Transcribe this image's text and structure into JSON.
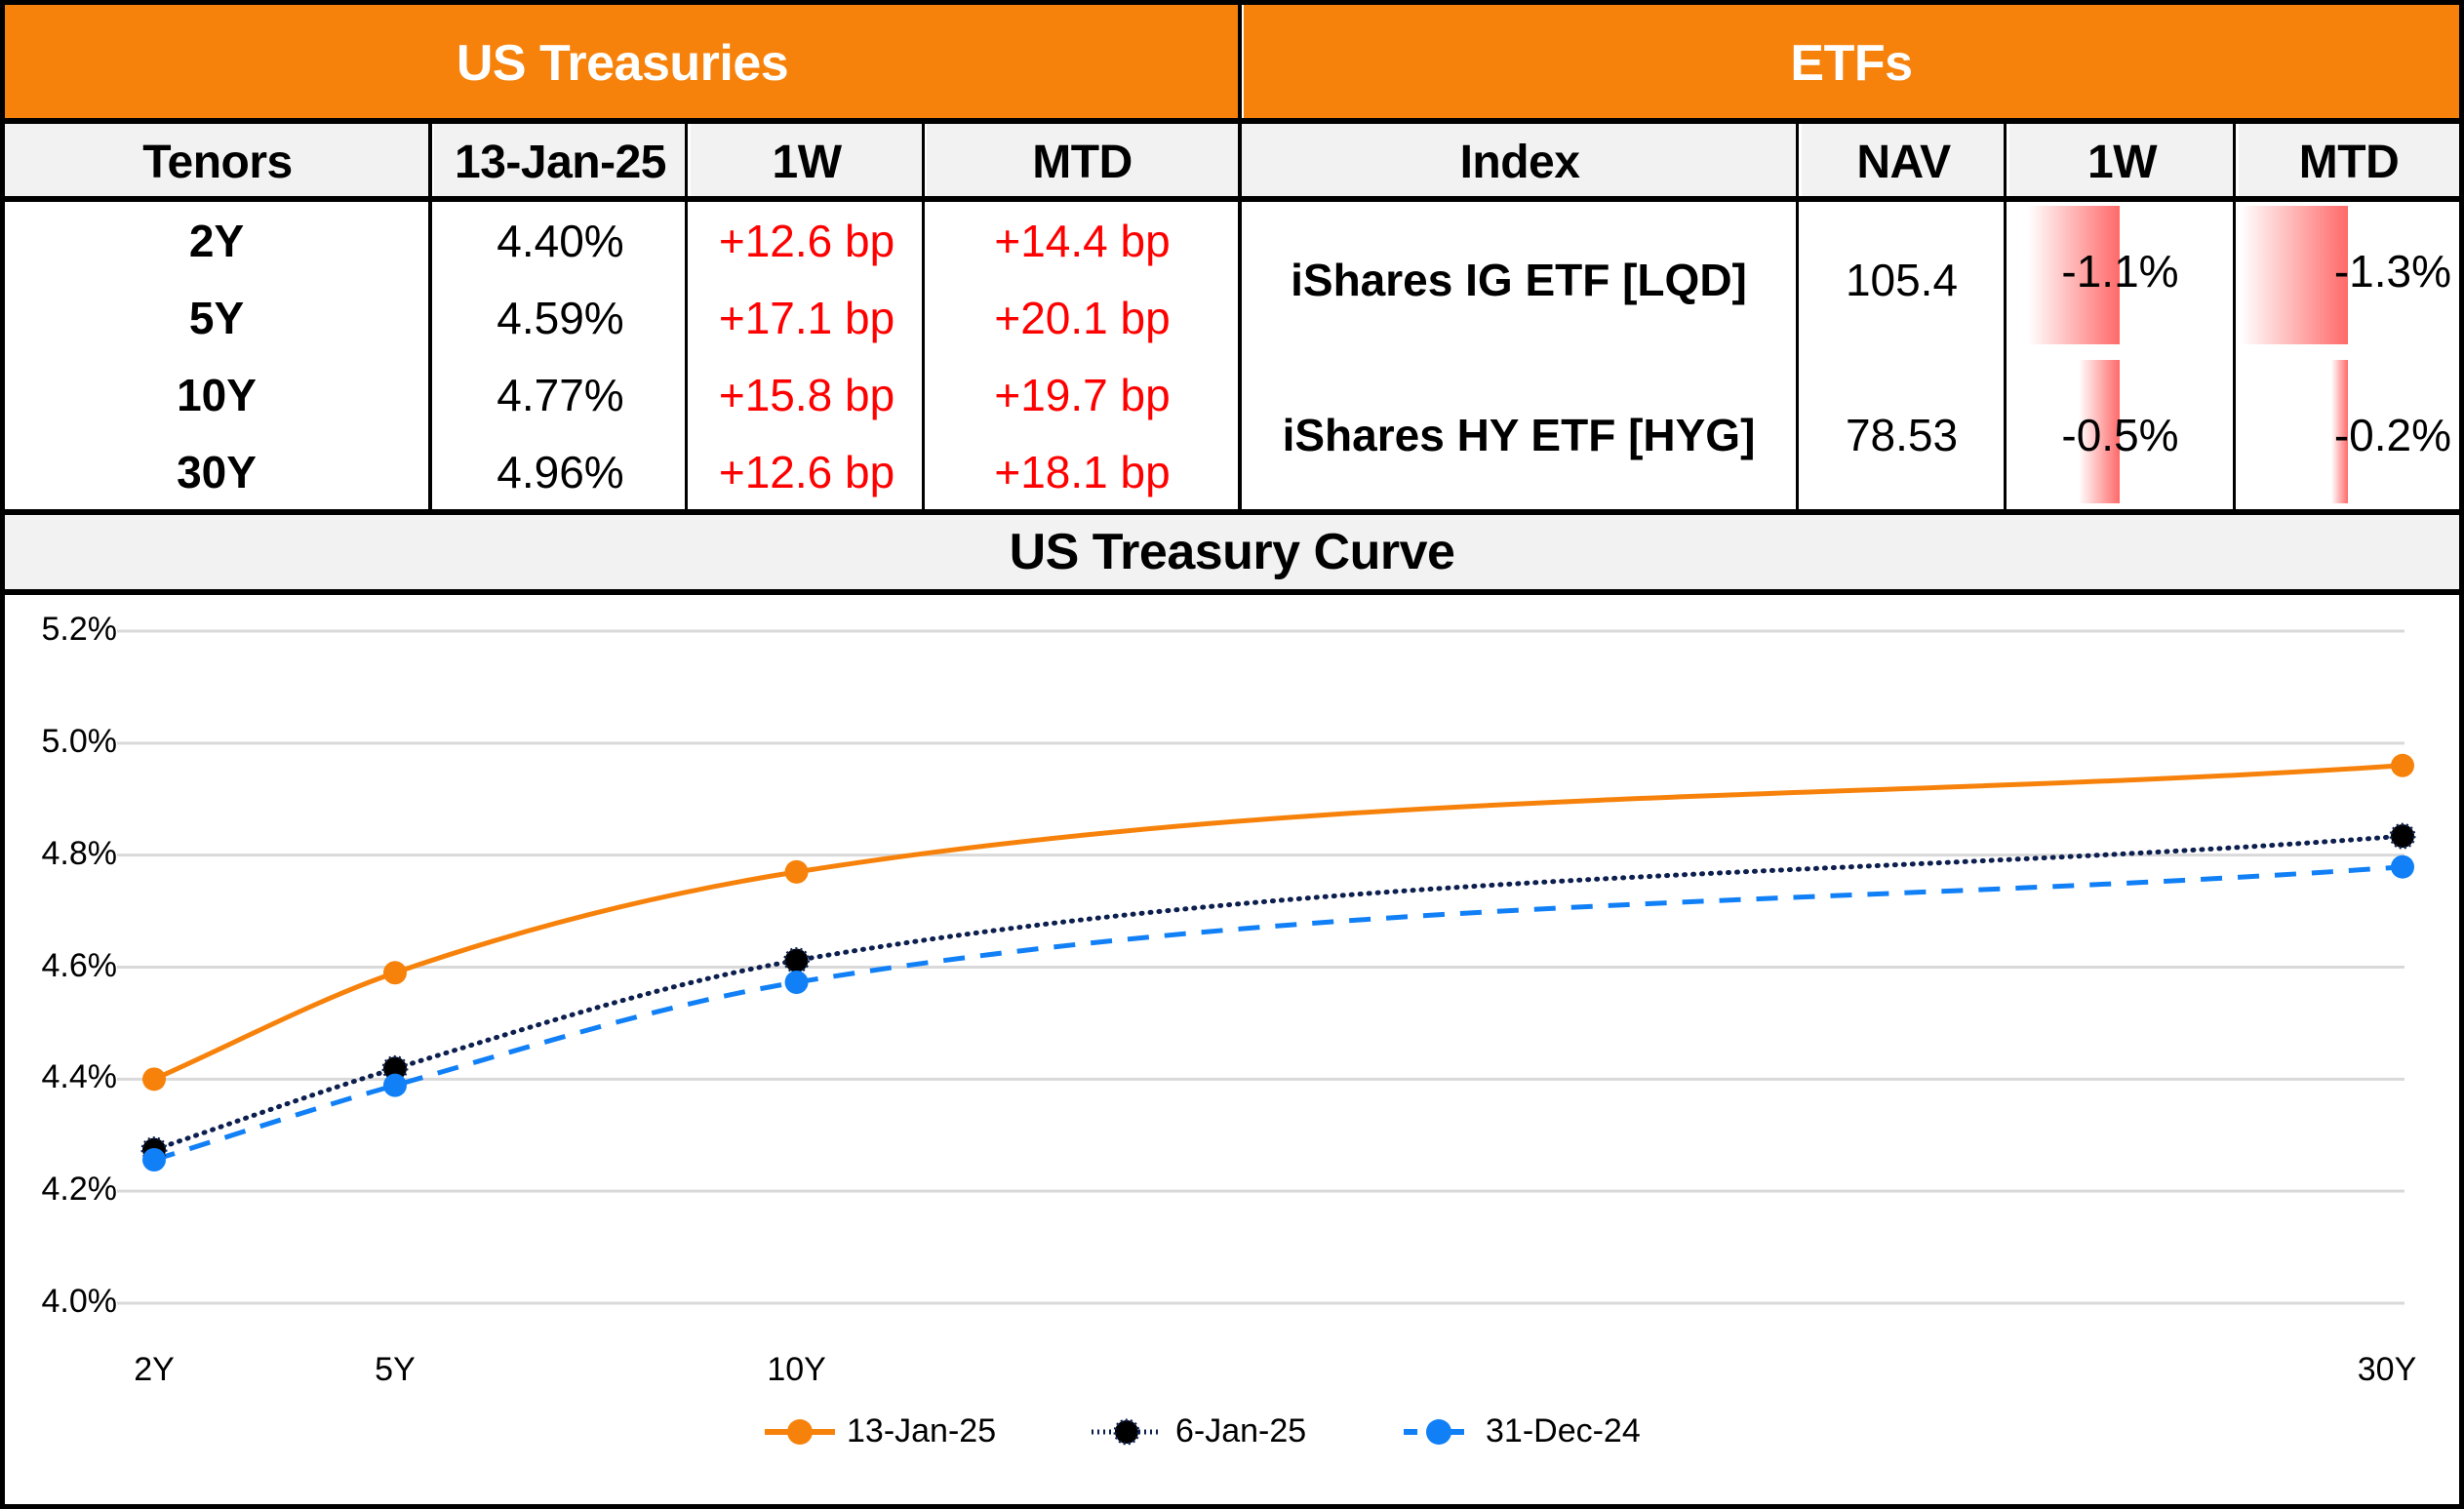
{
  "treasuries": {
    "title": "US Treasuries",
    "columns": [
      "Tenors",
      "13-Jan-25",
      "1W",
      "MTD"
    ],
    "rows": [
      {
        "tenor": "2Y",
        "yield": "4.40%",
        "w1": "+12.6 bp",
        "mtd": "+14.4 bp"
      },
      {
        "tenor": "5Y",
        "yield": "4.59%",
        "w1": "+17.1 bp",
        "mtd": "+20.1 bp"
      },
      {
        "tenor": "10Y",
        "yield": "4.77%",
        "w1": "+15.8 bp",
        "mtd": "+19.7 bp"
      },
      {
        "tenor": "30Y",
        "yield": "4.96%",
        "w1": "+12.6 bp",
        "mtd": "+18.1 bp"
      }
    ]
  },
  "etfs": {
    "title": "ETFs",
    "columns": [
      "Index",
      "NAV",
      "1W",
      "MTD"
    ],
    "rows": [
      {
        "index": "iShares IG ETF [LQD]",
        "nav": "105.4",
        "w1": "-1.1%",
        "mtd": "-1.3%",
        "w1_value": -1.1,
        "mtd_value": -1.3
      },
      {
        "index": "iShares HY ETF [HYG]",
        "nav": "78.53",
        "w1": "-0.5%",
        "mtd": "-0.2%",
        "w1_value": -0.5,
        "mtd_value": -0.2
      }
    ],
    "bar_color": "#ff6a6a"
  },
  "curve_title": "US Treasury Curve",
  "colors": {
    "header_orange": "#f7820b",
    "subheader_grey": "#f2f2f2",
    "change_red": "#ff0000",
    "gridline": "#d9d9d9"
  },
  "chart_data": {
    "type": "line",
    "title": "US Treasury Curve",
    "xlabel": "",
    "ylabel": "",
    "x": [
      2,
      5,
      10,
      30
    ],
    "categories": [
      "2Y",
      "5Y",
      "10Y",
      "30Y"
    ],
    "ylim": [
      4.0,
      5.2
    ],
    "yticks": [
      4.0,
      4.2,
      4.4,
      4.6,
      4.8,
      5.0,
      5.2
    ],
    "ytick_labels": [
      "4.0%",
      "4.2%",
      "4.4%",
      "4.6%",
      "4.8%",
      "5.0%",
      "5.2%"
    ],
    "grid": true,
    "smooth": true,
    "legend_position": "bottom",
    "series": [
      {
        "name": "13-Jan-25",
        "values": [
          4.4,
          4.59,
          4.77,
          4.96
        ],
        "color": "#f7820b",
        "dash": "solid",
        "marker_color": "#f7820b"
      },
      {
        "name": "6-Jan-25",
        "values": [
          4.274,
          4.419,
          4.612,
          4.834
        ],
        "color": "#0d1f4f",
        "dash": "dotted",
        "marker_color": "#000000"
      },
      {
        "name": "31-Dec-24",
        "values": [
          4.256,
          4.389,
          4.573,
          4.779
        ],
        "color": "#1180f7",
        "dash": "dashed",
        "marker_color": "#1180f7"
      }
    ]
  }
}
